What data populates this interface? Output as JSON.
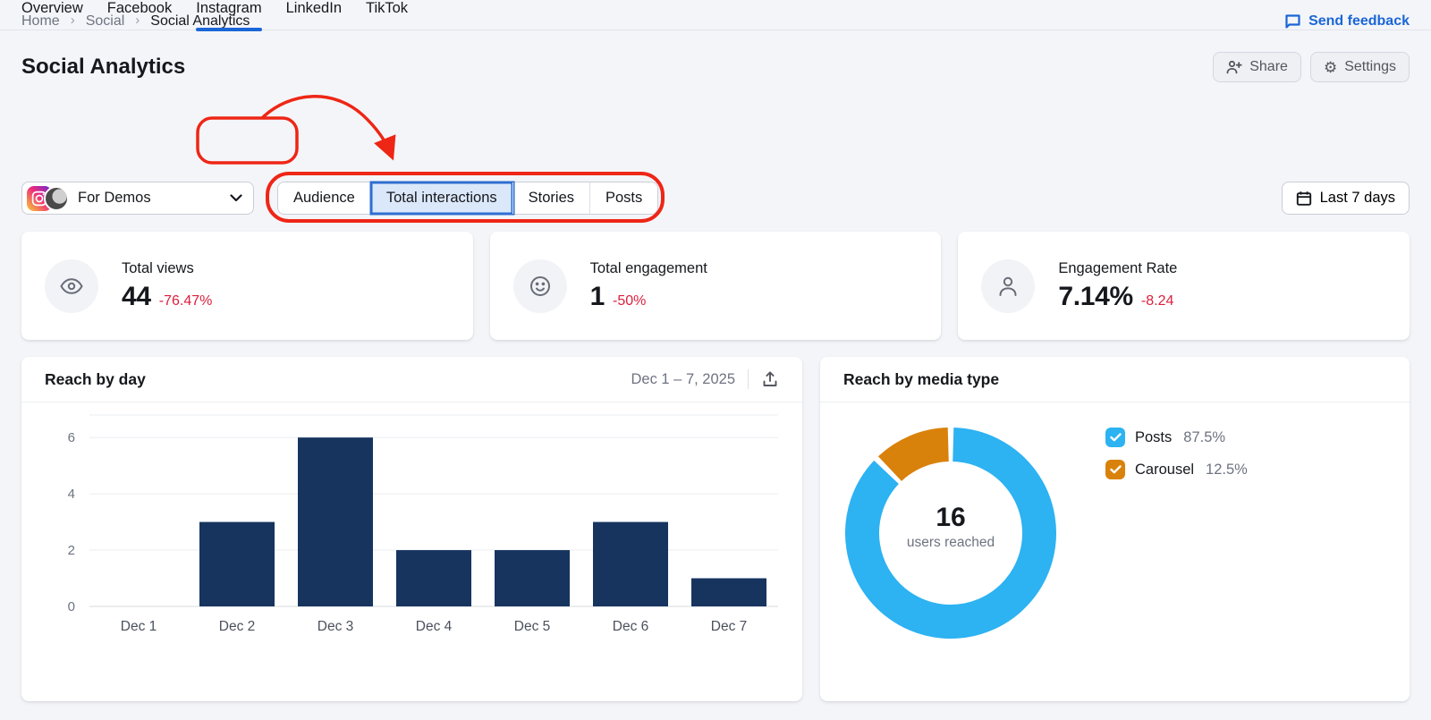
{
  "colors": {
    "brand": "#1a66d6",
    "negative": "#dc1f3c",
    "annotation": "#ee2616",
    "segment_active_bg": "#dbe8fa",
    "segment_active_border": "#2e6ed0"
  },
  "breadcrumb": {
    "items": [
      "Home",
      "Social",
      "Social Analytics"
    ]
  },
  "feedback_label": "Send feedback",
  "page_title": "Social Analytics",
  "actions": {
    "share": "Share",
    "settings": "Settings"
  },
  "tabs": {
    "items": [
      {
        "label": "Overview",
        "active": false
      },
      {
        "label": "Facebook",
        "active": false
      },
      {
        "label": "Instagram",
        "active": true
      },
      {
        "label": "LinkedIn",
        "active": false
      },
      {
        "label": "TikTok",
        "active": false
      }
    ]
  },
  "profile_selector": {
    "label": "For Demos"
  },
  "subtabs": {
    "items": [
      {
        "label": "Audience",
        "active": false
      },
      {
        "label": "Total interactions",
        "active": true
      },
      {
        "label": "Stories",
        "active": false
      },
      {
        "label": "Posts",
        "active": false
      }
    ]
  },
  "date_range_button": "Last 7 days",
  "stats": [
    {
      "label": "Total views",
      "value": "44",
      "delta": "-76.47%"
    },
    {
      "label": "Total engagement",
      "value": "1",
      "delta": "-50%"
    },
    {
      "label": "Engagement Rate",
      "value": "7.14%",
      "delta": "-8.24"
    }
  ],
  "chart_data": [
    {
      "type": "bar",
      "title": "Reach by day",
      "date_range": "Dec 1 – 7, 2025",
      "categories": [
        "Dec 1",
        "Dec 2",
        "Dec 3",
        "Dec 4",
        "Dec 5",
        "Dec 6",
        "Dec 7"
      ],
      "values": [
        0,
        3,
        6,
        2,
        2,
        3,
        1
      ],
      "yticks": [
        0,
        2,
        4,
        6
      ],
      "ylim": [
        0,
        6.8
      ],
      "grid": true,
      "bar_color": "#17345f",
      "axis_label_color": "#6d7380",
      "category_label_color": "#4a505c"
    },
    {
      "type": "donut",
      "title": "Reach by media type",
      "center_value": "16",
      "center_label": "users reached",
      "legend_position": "right",
      "slices": [
        {
          "label": "Posts",
          "value": 87.5,
          "pct_label": "87.5%",
          "color": "#2db2f2"
        },
        {
          "label": "Carousel",
          "value": 12.5,
          "pct_label": "12.5%",
          "color": "#d9820b"
        }
      ]
    }
  ]
}
